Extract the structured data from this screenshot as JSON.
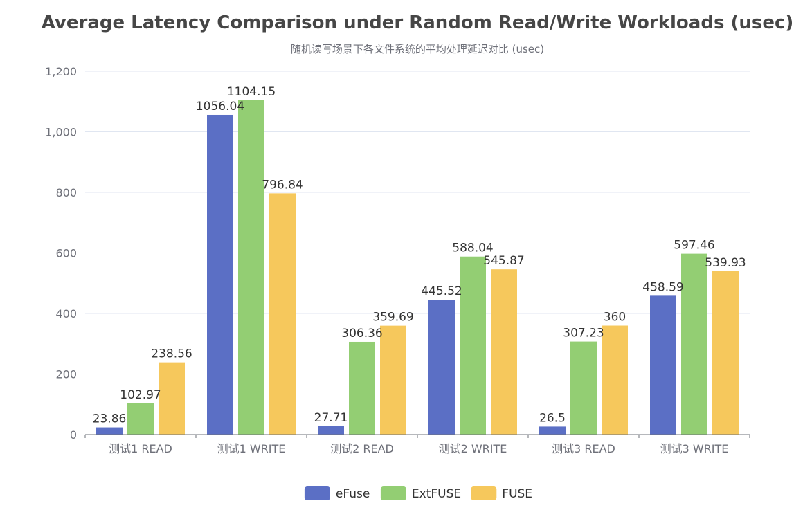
{
  "chart_data": {
    "type": "bar",
    "title": "Average Latency Comparison under Random Read/Write Workloads (usec)",
    "subtitle": "随机读写场景下各文件系统的平均处理延迟对比 (usec)",
    "categories": [
      "测试1 READ",
      "测试1 WRITE",
      "测试2 READ",
      "测试2 WRITE",
      "测试3 READ",
      "测试3 WRITE"
    ],
    "series": [
      {
        "name": "eFuse",
        "color": "#5b6fc5",
        "values": [
          23.86,
          1056.04,
          27.71,
          445.52,
          26.5,
          458.59
        ]
      },
      {
        "name": "ExtFUSE",
        "color": "#93ce73",
        "values": [
          102.97,
          1104.15,
          306.36,
          588.04,
          307.23,
          597.46
        ]
      },
      {
        "name": "FUSE",
        "color": "#f6c85c",
        "values": [
          238.56,
          796.84,
          359.69,
          545.87,
          360,
          539.93
        ]
      }
    ],
    "ylim": [
      0,
      1200
    ],
    "yticks": [
      "0",
      "200",
      "400",
      "600",
      "800",
      "1,000",
      "1,200"
    ],
    "ytick_values": [
      0,
      200,
      400,
      600,
      800,
      1000,
      1200
    ],
    "xlabel": "",
    "ylabel": "",
    "grid": true,
    "legend_position": "bottom-center"
  }
}
